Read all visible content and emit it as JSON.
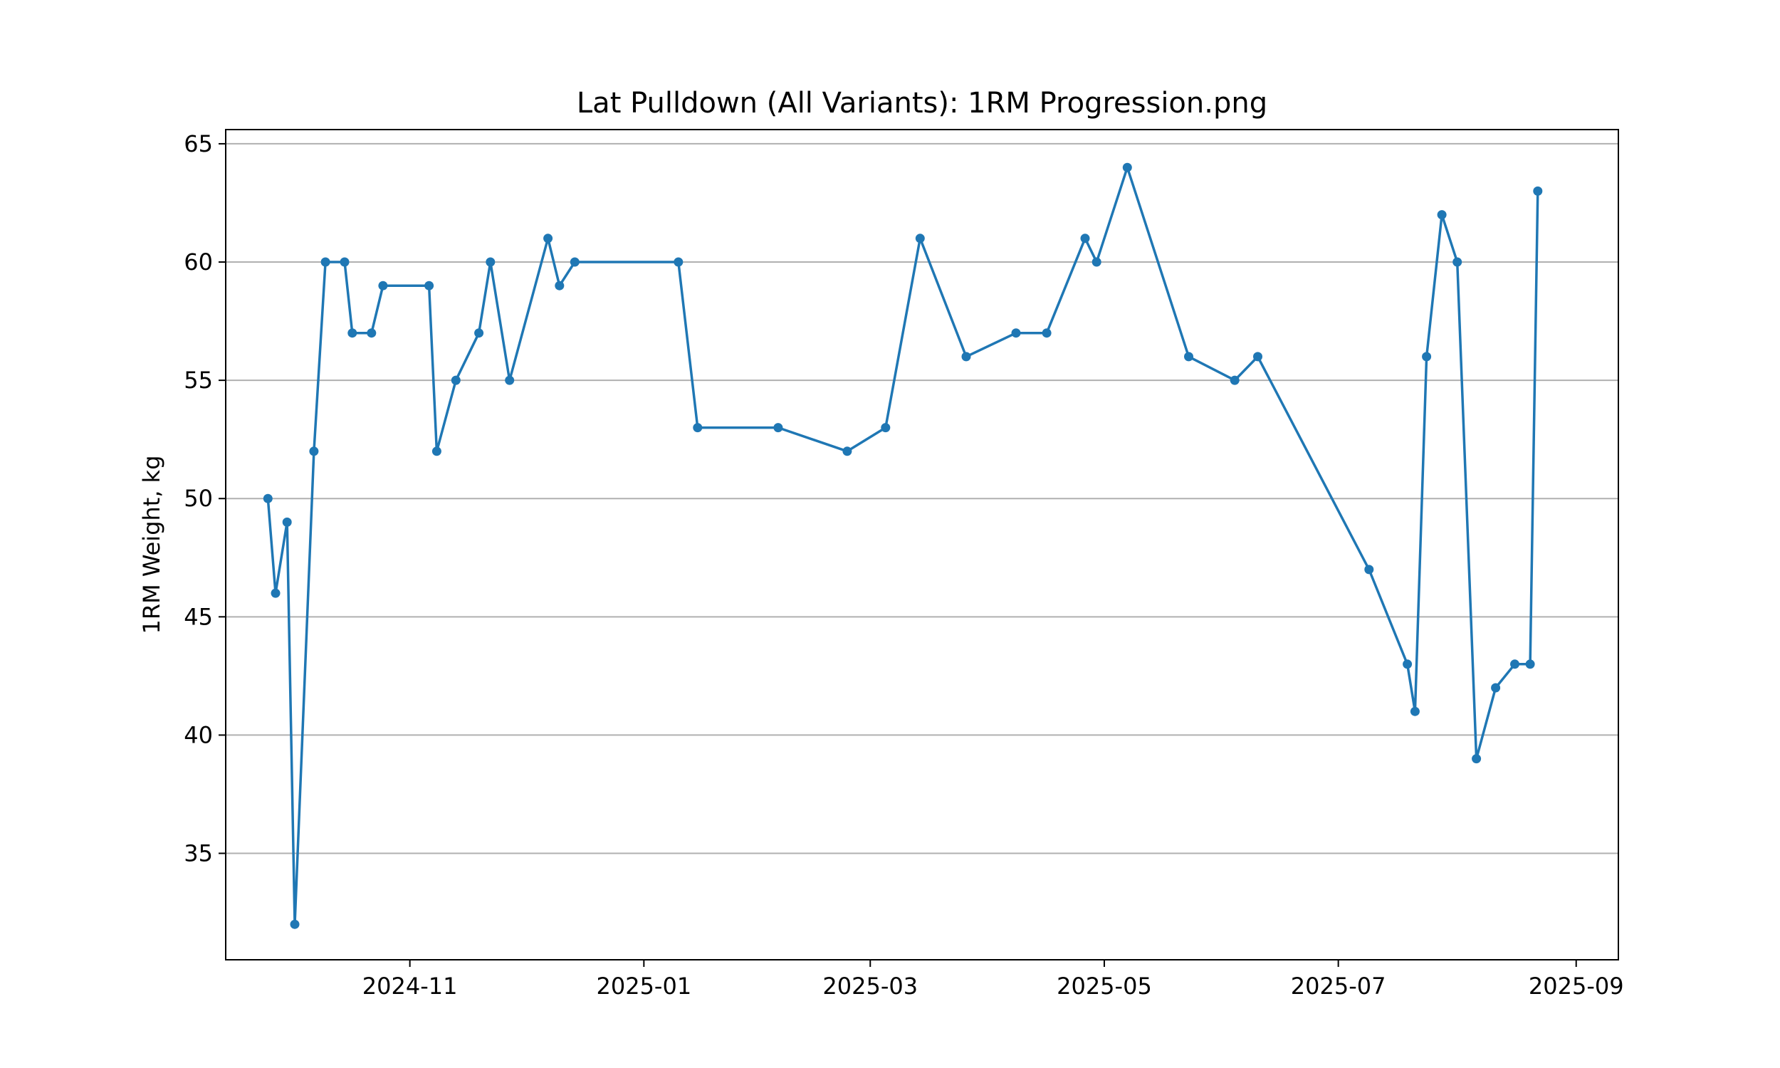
{
  "chart_data": {
    "type": "line",
    "title": "Lat Pulldown (All Variants): 1RM Progression.png",
    "xlabel": "",
    "ylabel": "1RM Weight, kg",
    "x_type": "date",
    "xlim": [
      "2024-09-14",
      "2025-09-12"
    ],
    "ylim": [
      30.5,
      65.6
    ],
    "grid": "y",
    "color": "#1f77b4",
    "x_ticks": [
      "2024-11-01",
      "2025-01-01",
      "2025-03-01",
      "2025-05-01",
      "2025-07-01",
      "2025-09-01"
    ],
    "x_tick_labels": [
      "2024-11",
      "2025-01",
      "2025-03",
      "2025-05",
      "2025-07",
      "2025-09"
    ],
    "y_ticks": [
      35,
      40,
      45,
      50,
      55,
      60,
      65
    ],
    "y_tick_labels": [
      "35",
      "40",
      "45",
      "50",
      "55",
      "60",
      "65"
    ],
    "series": [
      {
        "x": [
          "2024-09-25",
          "2024-09-27",
          "2024-09-30",
          "2024-10-02",
          "2024-10-07",
          "2024-10-10",
          "2024-10-15",
          "2024-10-17",
          "2024-10-22",
          "2024-10-25",
          "2024-11-06",
          "2024-11-08",
          "2024-11-13",
          "2024-11-19",
          "2024-11-22",
          "2024-11-27",
          "2024-12-07",
          "2024-12-10",
          "2024-12-14",
          "2025-01-10",
          "2025-01-15",
          "2025-02-05",
          "2025-02-23",
          "2025-03-05",
          "2025-03-14",
          "2025-03-26",
          "2025-04-08",
          "2025-04-16",
          "2025-04-26",
          "2025-04-29",
          "2025-05-07",
          "2025-05-23",
          "2025-06-04",
          "2025-06-10",
          "2025-07-09",
          "2025-07-19",
          "2025-07-21",
          "2025-07-24",
          "2025-07-28",
          "2025-08-01",
          "2025-08-06",
          "2025-08-11",
          "2025-08-16",
          "2025-08-20",
          "2025-08-22"
        ],
        "y": [
          50,
          46,
          49,
          32,
          52,
          60,
          60,
          57,
          57,
          59,
          59,
          52,
          55,
          57,
          60,
          55,
          61,
          59,
          60,
          60,
          53,
          53,
          52,
          53,
          61,
          56,
          57,
          57,
          61,
          60,
          64,
          56,
          55,
          56,
          47,
          43,
          41,
          56,
          62,
          60,
          39,
          42,
          43,
          43,
          63
        ]
      }
    ]
  }
}
